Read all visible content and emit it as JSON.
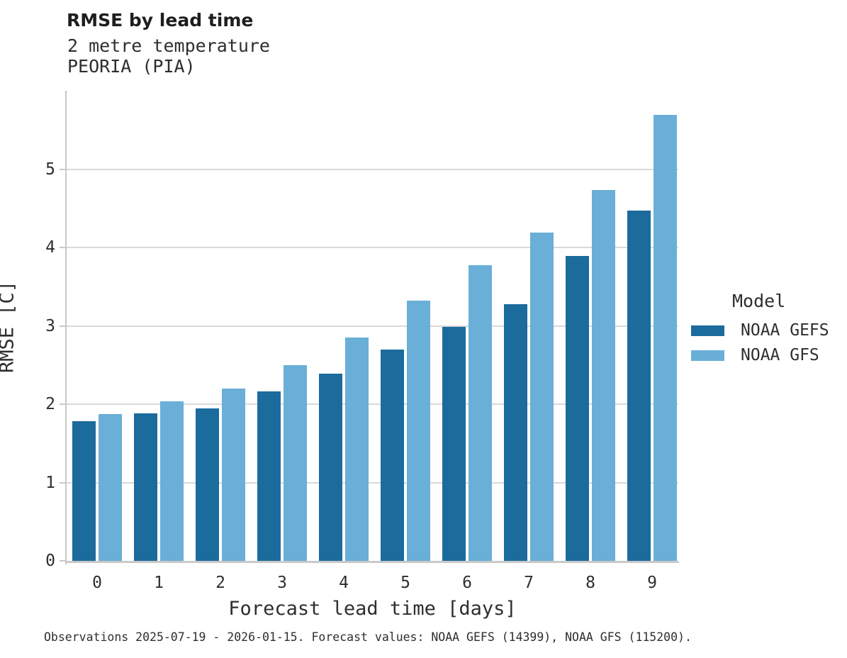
{
  "header": {
    "title": "RMSE by lead time",
    "subtitle_line1": "2 metre temperature",
    "subtitle_line2": "PEORIA (PIA)"
  },
  "chart_data": {
    "type": "bar",
    "title": "RMSE by lead time",
    "subtitle": [
      "2 metre temperature",
      "PEORIA (PIA)"
    ],
    "categories": [
      "0",
      "1",
      "2",
      "3",
      "4",
      "5",
      "6",
      "7",
      "8",
      "9"
    ],
    "series": [
      {
        "name": "NOAA GEFS",
        "color": "#1c6b9d",
        "values": [
          1.78,
          1.88,
          1.95,
          2.16,
          2.39,
          2.7,
          2.99,
          3.28,
          3.89,
          4.47
        ]
      },
      {
        "name": "NOAA GFS",
        "color": "#69afd7",
        "values": [
          1.87,
          2.04,
          2.2,
          2.5,
          2.85,
          3.32,
          3.77,
          4.19,
          4.73,
          5.69
        ]
      }
    ],
    "xlabel": "Forecast lead time [days]",
    "ylabel": "RMSE [C]",
    "ylim": [
      0,
      6
    ],
    "yticks": [
      0,
      1,
      2,
      3,
      4,
      5
    ],
    "grid": "horizontal",
    "legend_title": "Model",
    "legend_position": "right",
    "gridline_color": "#d9d9d9",
    "axis_color": "#c9c9c9"
  },
  "legend": {
    "title": "Model"
  },
  "caption": {
    "text": "Observations 2025-07-19 - 2026-01-15. Forecast values: NOAA GEFS (14399), NOAA GFS (115200)."
  }
}
